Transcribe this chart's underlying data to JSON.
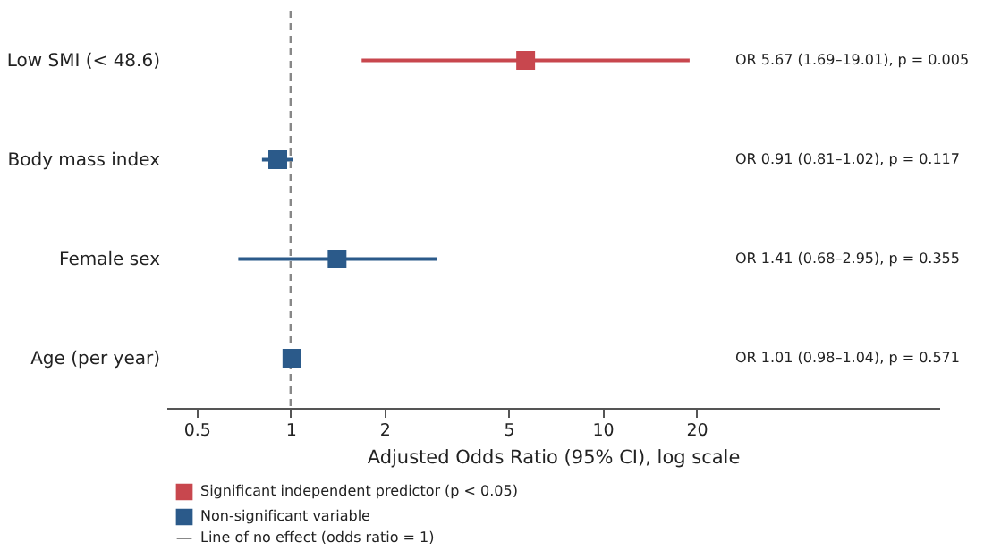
{
  "chart_data": {
    "type": "scatter",
    "orientation": "horizontal",
    "xlabel": "Adjusted Odds Ratio (95% CI), log scale",
    "categories": [
      "Low SMI (< 48.6)",
      "Body mass index",
      "Female sex",
      "Age (per year)"
    ],
    "series": [
      {
        "name": "Significant independent predictor (p < 0.05)",
        "color": "#c8474e",
        "values": [
          5.67,
          null,
          null,
          null
        ],
        "errors": [
          [
            1.69,
            19.01
          ],
          null,
          null,
          null
        ]
      },
      {
        "name": "Non-significant variable",
        "color": "#2b5a8a",
        "values": [
          null,
          0.91,
          1.41,
          1.01
        ],
        "errors": [
          null,
          [
            0.81,
            1.02
          ],
          [
            0.68,
            2.95
          ],
          [
            0.98,
            1.04
          ]
        ]
      }
    ],
    "xlim": [
      0.4,
      120
    ],
    "xticks": [
      0.5,
      1,
      2,
      5,
      10,
      20
    ],
    "log": "x",
    "marker": "square",
    "legend": "bottom",
    "grid": false,
    "ref_lines": [
      {
        "axis": "x",
        "value": 1,
        "label": "Line of no effect (odds ratio = 1)",
        "color": "#888888",
        "line_style": "dashed"
      }
    ],
    "annotations": [
      "OR 5.67 (1.69–19.01), p = 0.005",
      "OR 0.91 (0.81–1.02), p = 0.117",
      "OR 1.41 (0.68–2.95), p = 0.355",
      "OR 1.01 (0.98–1.04), p = 0.571"
    ]
  }
}
